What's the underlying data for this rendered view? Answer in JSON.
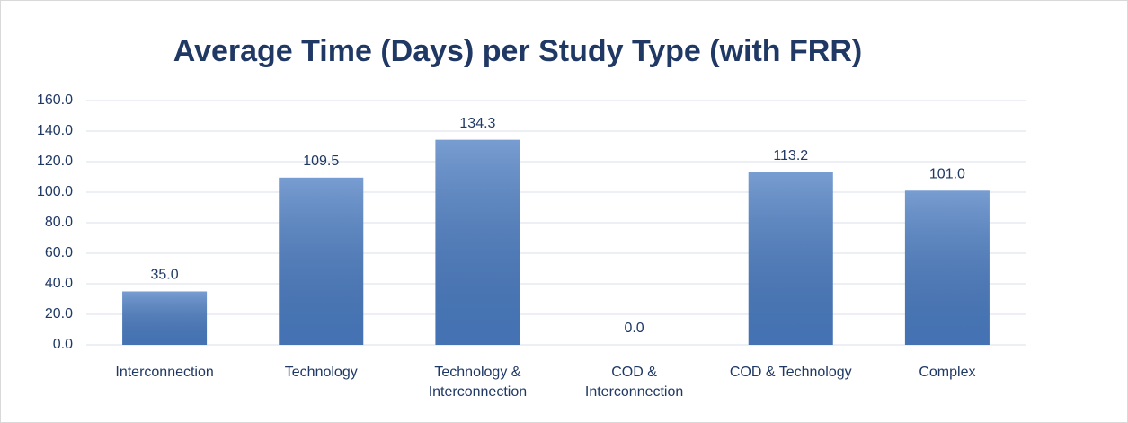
{
  "chart_data": {
    "type": "bar",
    "title": "Average Time (Days) per Study Type (with FRR)",
    "categories": [
      "Interconnection",
      "Technology",
      "Technology & Interconnection",
      "COD & Interconnection",
      "COD & Technology",
      "Complex"
    ],
    "values": [
      35.0,
      109.5,
      134.3,
      0.0,
      113.2,
      101.0
    ],
    "value_labels": [
      "35.0",
      "109.5",
      "134.3",
      "0.0",
      "113.2",
      "101.0"
    ],
    "color": "#4a7cc2",
    "ylim": [
      0,
      160
    ],
    "yticks": [
      {
        "value": 0,
        "label": "0.0"
      },
      {
        "value": 20,
        "label": "20.0"
      },
      {
        "value": 40,
        "label": "40.0"
      },
      {
        "value": 60,
        "label": "60.0"
      },
      {
        "value": 80,
        "label": "80.0"
      },
      {
        "value": 100,
        "label": "100.0"
      },
      {
        "value": 120,
        "label": "120.0"
      },
      {
        "value": 140,
        "label": "140.0"
      },
      {
        "value": 160,
        "label": "160.0"
      }
    ],
    "grid": true
  }
}
